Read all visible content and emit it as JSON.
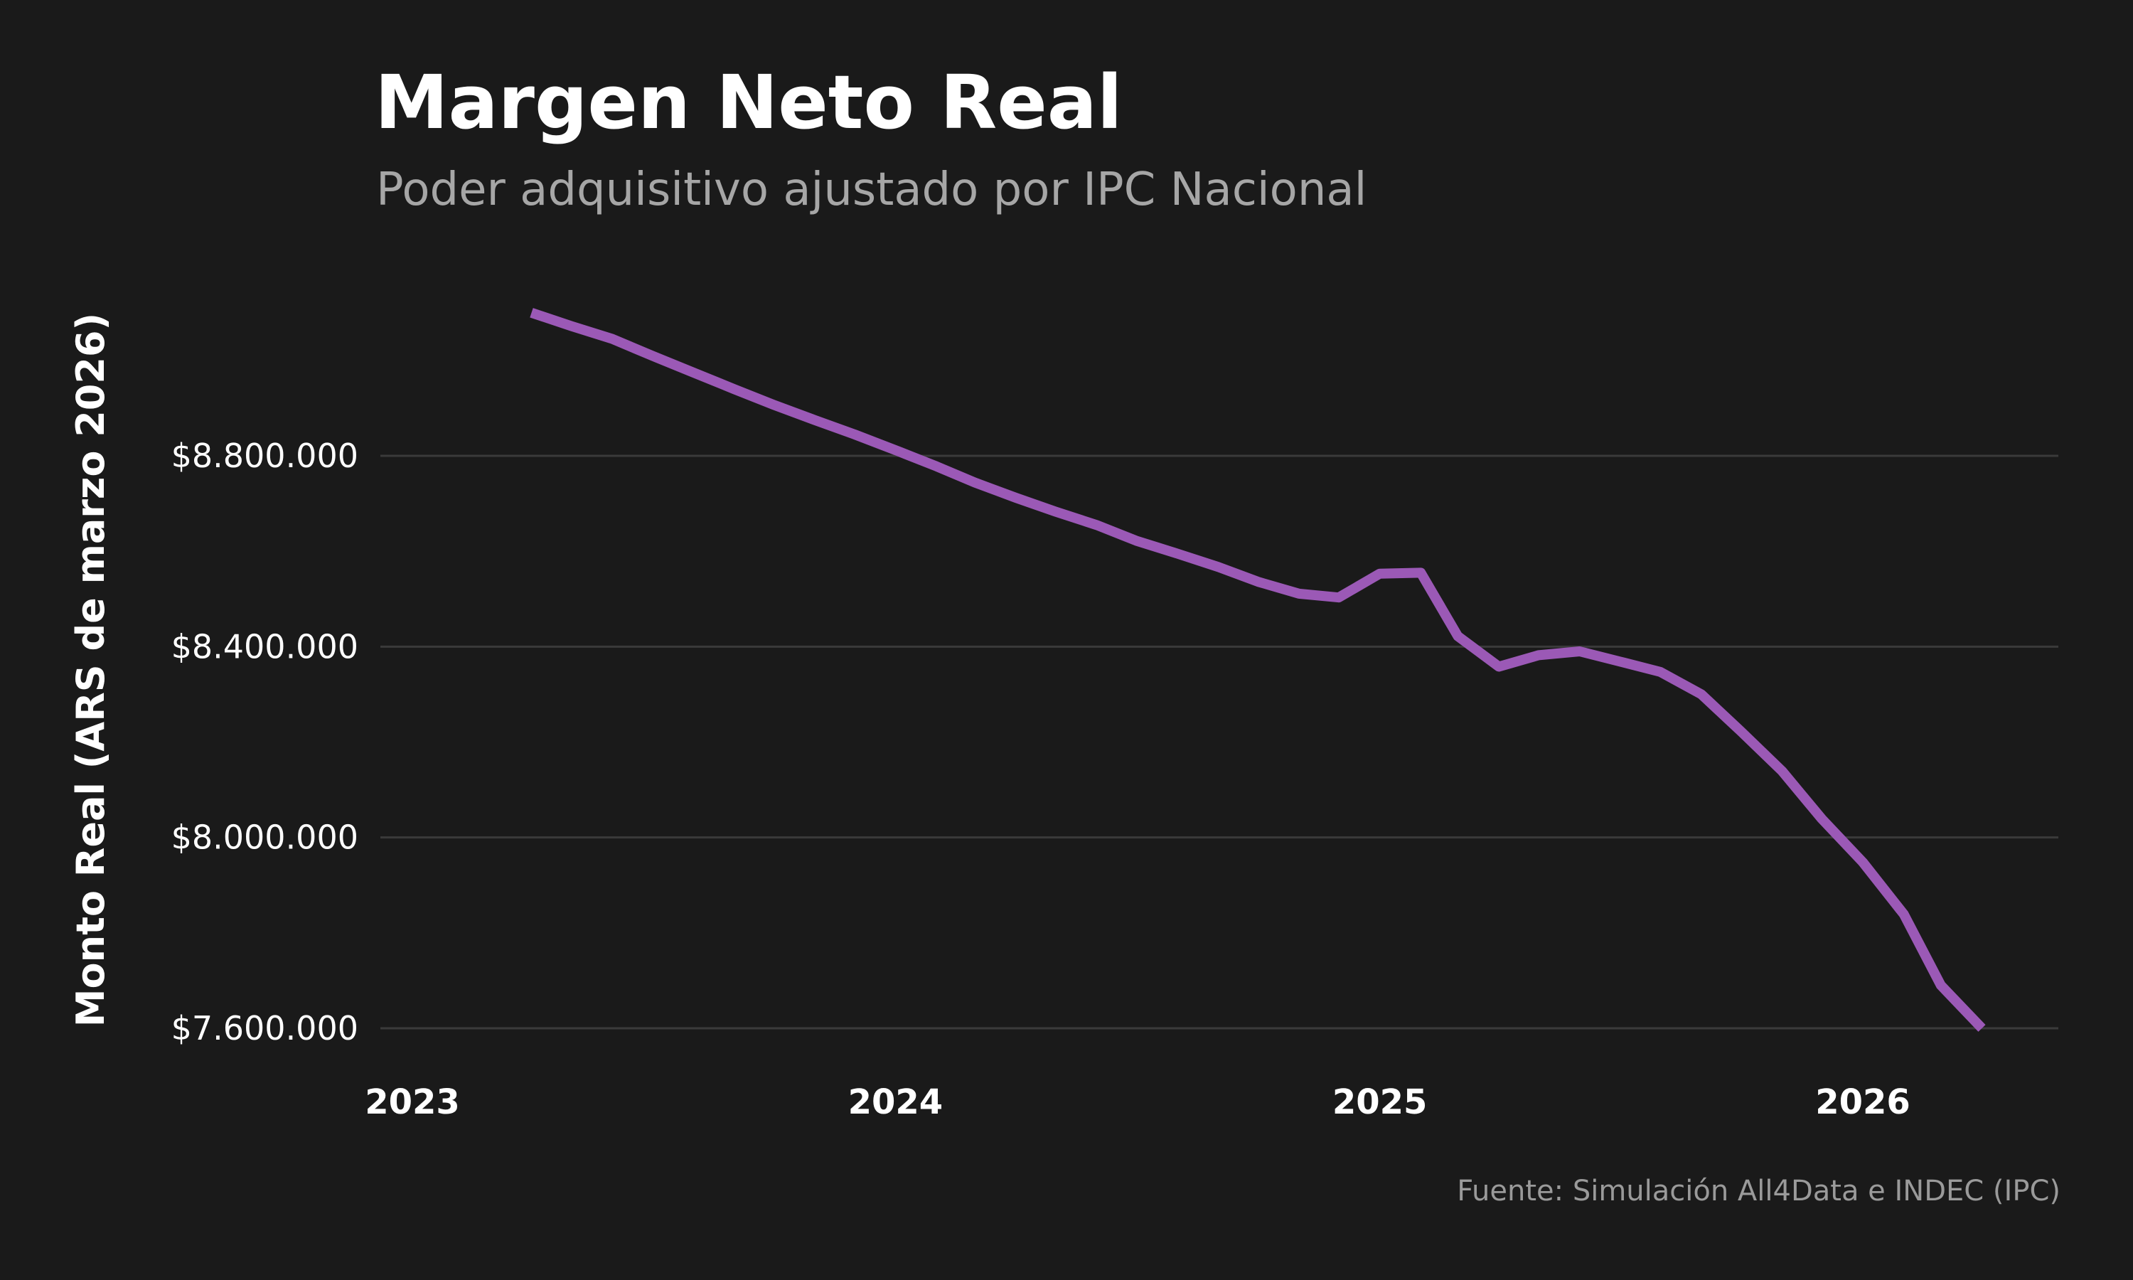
{
  "chart_data": {
    "type": "line",
    "title": "Margen Neto Real",
    "subtitle": "Poder adquisitivo ajustado por IPC Nacional",
    "xlabel": "",
    "ylabel": "Monto Real (ARS de marzo 2026)",
    "source": "Fuente: Simulación All4Data e INDEC (IPC)",
    "ylim": [
      7600000,
      9100000
    ],
    "y_ticks": [
      7600000,
      8000000,
      8400000,
      8800000
    ],
    "y_tick_labels": [
      "$7.600.000",
      "$8.000.000",
      "$8.400.000",
      "$8.800.000"
    ],
    "x_range": [
      "2023-01-01",
      "2026-06-01"
    ],
    "x_ticks": [
      "2023-01-01",
      "2024-01-01",
      "2025-01-01",
      "2026-01-01"
    ],
    "x_tick_labels": [
      "2023",
      "2024",
      "2025",
      "2026"
    ],
    "grid": "horizontal",
    "colors": {
      "background": "#1a1a1a",
      "line": "#9b59b6",
      "grid": "#3a3a3a"
    },
    "series": [
      {
        "values": [
          {
            "x": "2023-04-01",
            "y": 9100000
          },
          {
            "x": "2023-05-01",
            "y": 9072000
          },
          {
            "x": "2023-06-01",
            "y": 9045000
          },
          {
            "x": "2023-07-01",
            "y": 9010000
          },
          {
            "x": "2023-08-01",
            "y": 8975000
          },
          {
            "x": "2023-09-01",
            "y": 8940000
          },
          {
            "x": "2023-10-01",
            "y": 8907000
          },
          {
            "x": "2023-11-01",
            "y": 8875000
          },
          {
            "x": "2023-12-01",
            "y": 8845000
          },
          {
            "x": "2024-01-01",
            "y": 8812000
          },
          {
            "x": "2024-02-01",
            "y": 8778000
          },
          {
            "x": "2024-03-01",
            "y": 8744000
          },
          {
            "x": "2024-04-01",
            "y": 8712000
          },
          {
            "x": "2024-05-01",
            "y": 8683000
          },
          {
            "x": "2024-06-01",
            "y": 8655000
          },
          {
            "x": "2024-07-01",
            "y": 8622000
          },
          {
            "x": "2024-08-01",
            "y": 8595000
          },
          {
            "x": "2024-09-01",
            "y": 8567000
          },
          {
            "x": "2024-10-01",
            "y": 8536000
          },
          {
            "x": "2024-11-01",
            "y": 8511000
          },
          {
            "x": "2024-12-01",
            "y": 8503000
          },
          {
            "x": "2025-01-01",
            "y": 8553000
          },
          {
            "x": "2025-02-01",
            "y": 8555000
          },
          {
            "x": "2025-03-01",
            "y": 8422000
          },
          {
            "x": "2025-04-01",
            "y": 8358000
          },
          {
            "x": "2025-05-01",
            "y": 8382000
          },
          {
            "x": "2025-06-01",
            "y": 8390000
          },
          {
            "x": "2025-07-01",
            "y": 8369000
          },
          {
            "x": "2025-08-01",
            "y": 8347000
          },
          {
            "x": "2025-09-01",
            "y": 8300000
          },
          {
            "x": "2025-10-01",
            "y": 8222000
          },
          {
            "x": "2025-11-01",
            "y": 8139000
          },
          {
            "x": "2025-12-01",
            "y": 8039000
          },
          {
            "x": "2026-01-01",
            "y": 7948000
          },
          {
            "x": "2026-02-01",
            "y": 7839000
          },
          {
            "x": "2026-03-01",
            "y": 7690000
          },
          {
            "x": "2026-04-01",
            "y": 7600000
          }
        ]
      }
    ]
  }
}
